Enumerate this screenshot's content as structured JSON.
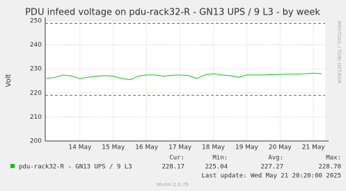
{
  "chart_data": {
    "type": "line",
    "title": "PDU infeed voltage on pdu-rack32-R - GN13 UPS / 9 L3 - by week",
    "y_label": "Volt",
    "side_text": "RRDTOOL / TOBI OETIKER",
    "x": [
      13.0,
      13.25,
      13.5,
      13.75,
      14.0,
      14.25,
      14.5,
      14.75,
      15.0,
      15.25,
      15.5,
      15.75,
      16.0,
      16.25,
      16.5,
      16.75,
      17.0,
      17.25,
      17.5,
      17.75,
      18.0,
      18.25,
      18.5,
      18.75,
      19.0,
      19.25,
      19.5,
      19.75,
      20.0,
      20.25,
      20.5,
      20.75,
      21.0,
      21.25
    ],
    "series": [
      {
        "name": "pdu-rack32-R - GN13 UPS / 9 L3",
        "color": "#00cc00",
        "values": [
          226,
          226.5,
          227.5,
          227,
          226,
          226.5,
          227,
          227.2,
          227,
          226,
          225.5,
          227,
          227.5,
          227.5,
          227,
          227.3,
          227.5,
          227.2,
          226,
          227.5,
          228,
          227.5,
          227.2,
          226.5,
          227.5,
          227.5,
          227.5,
          227.6,
          227.7,
          227.8,
          227.8,
          228,
          228.2,
          228
        ]
      }
    ],
    "thresholds": [
      {
        "value": 249,
        "color": "#00aa00"
      },
      {
        "value": 219,
        "color": "#00aa00"
      }
    ],
    "xlim": [
      12.96,
      21.35
    ],
    "xticks": [
      {
        "value": 14,
        "label": "14 May"
      },
      {
        "value": 15,
        "label": "15 May"
      },
      {
        "value": 16,
        "label": "16 May"
      },
      {
        "value": 17,
        "label": "17 May"
      },
      {
        "value": 18,
        "label": "18 May"
      },
      {
        "value": 19,
        "label": "19 May"
      },
      {
        "value": 20,
        "label": "20 May"
      },
      {
        "value": 21,
        "label": "21 May"
      }
    ],
    "ylim": [
      200,
      250
    ],
    "yticks": [
      200,
      210,
      220,
      230,
      240,
      250
    ],
    "grid": true,
    "stats": [
      {
        "name": "Cur:",
        "value": 228.17,
        "label": "228.17"
      },
      {
        "name": "Min:",
        "value": 225.04,
        "label": "225.04"
      },
      {
        "name": "Avg:",
        "value": 227.27,
        "label": "227.27"
      },
      {
        "name": "Max:",
        "value": 228.7,
        "label": "228.70"
      }
    ],
    "last_update": "Last update: Wed May 21 20:20:00 2025",
    "footer": "Munin 2.0.75"
  }
}
